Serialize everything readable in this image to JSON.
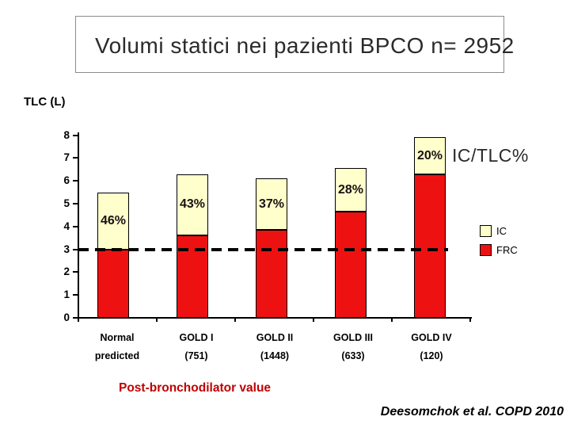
{
  "title": "Volumi statici nei pazienti BPCO n= 2952",
  "y_axis_title": "TLC (L)",
  "annotation": "IC/TLC%",
  "x_axis_note": "Post-bronchodilator value",
  "citation": "Deesomchok et al. COPD 2010",
  "colors": {
    "ic": "#ffffcc",
    "frc": "#ee1111",
    "note_text": "#c00000",
    "axis": "#000000",
    "title_text": "#2b2b2b"
  },
  "legend": [
    {
      "label": "IC",
      "color": "#ffffcc"
    },
    {
      "label": "FRC",
      "color": "#ee1111"
    }
  ],
  "chart_data": {
    "type": "bar",
    "stacked": true,
    "title": "Volumi statici nei pazienti BPCO n= 2952",
    "ylabel": "TLC (L)",
    "ylim": [
      0,
      8
    ],
    "yticks": [
      0,
      1,
      2,
      3,
      4,
      5,
      6,
      7,
      8
    ],
    "grid": false,
    "legend_position": "right",
    "categories": [
      [
        "Normal",
        "predicted"
      ],
      [
        "GOLD I",
        "(751)"
      ],
      [
        "GOLD II",
        "(1448)"
      ],
      [
        "GOLD III",
        "(633)"
      ],
      [
        "GOLD IV",
        "(120)"
      ]
    ],
    "series": [
      {
        "name": "FRC",
        "color": "#ee1111",
        "values": [
          3.0,
          3.6,
          3.85,
          4.65,
          6.3
        ]
      },
      {
        "name": "IC",
        "color": "#ffffcc",
        "values": [
          2.5,
          2.7,
          2.25,
          1.9,
          1.6
        ]
      }
    ],
    "totals": [
      5.5,
      6.3,
      6.1,
      6.55,
      7.9
    ],
    "bar_labels": [
      "46%",
      "43%",
      "37%",
      "28%",
      "20%"
    ],
    "bar_labels_meaning": "IC/TLC%",
    "reference_line_y": 3
  }
}
